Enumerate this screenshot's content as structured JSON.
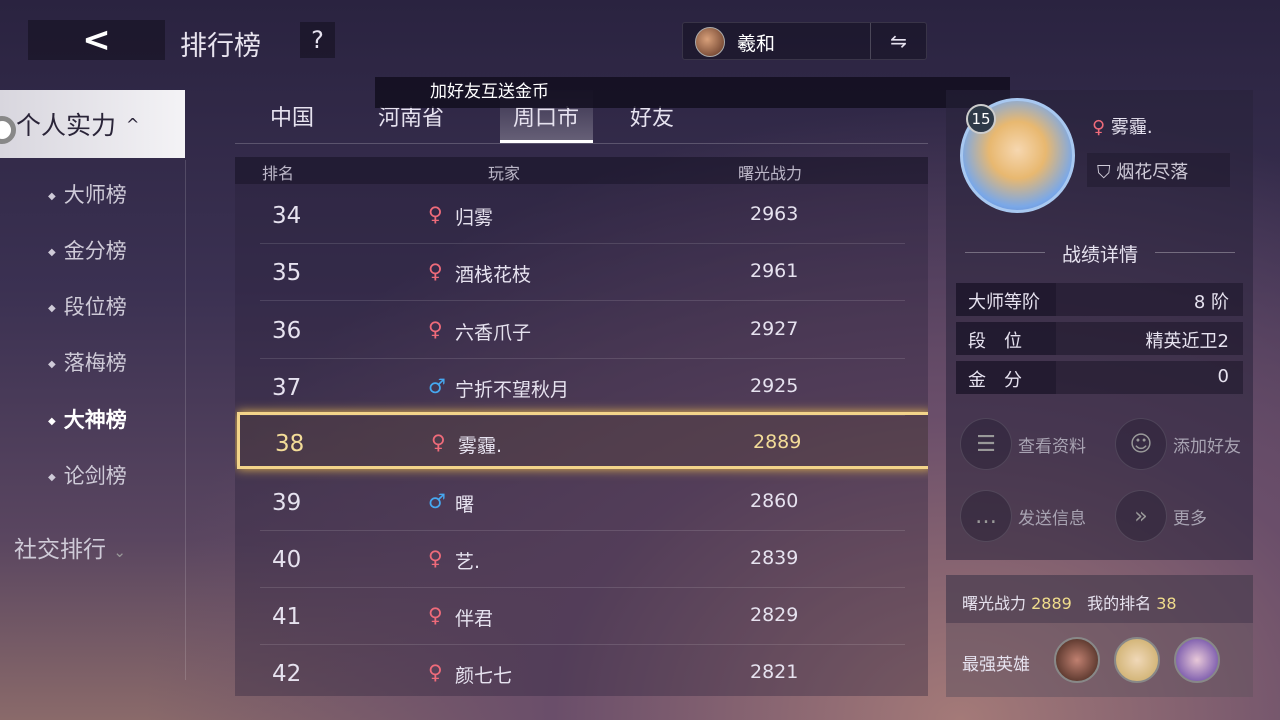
{
  "header": {
    "back_icon": "chevron-left",
    "title": "排行榜",
    "help": "?",
    "account_name": "羲和",
    "swap_icon": "swap-arrows"
  },
  "sidebar": {
    "group": "个人实力",
    "items": [
      {
        "label": "大师榜"
      },
      {
        "label": "金分榜"
      },
      {
        "label": "段位榜"
      },
      {
        "label": "落梅榜"
      },
      {
        "label": "大神榜",
        "active": true
      },
      {
        "label": "论剑榜"
      }
    ],
    "social": "社交排行"
  },
  "tabs": [
    {
      "label": "中国"
    },
    {
      "label": "河南省"
    },
    {
      "label": "周口市",
      "selected": true
    },
    {
      "label": "好友"
    }
  ],
  "banner": "加好友互送金币",
  "table": {
    "headers": [
      "排名",
      "玩家",
      "曙光战力"
    ],
    "rows": [
      {
        "rank": "34",
        "gender": "♀",
        "name": "归雾",
        "power": "2963"
      },
      {
        "rank": "35",
        "gender": "♀",
        "name": "酒栈花枝",
        "power": "2961"
      },
      {
        "rank": "36",
        "gender": "♀",
        "name": "六香爪子",
        "power": "2927"
      },
      {
        "rank": "37",
        "gender": "♂",
        "name": "宁折不望秋月",
        "power": "2925"
      },
      {
        "rank": "38",
        "gender": "♀",
        "name": "雾霾.",
        "power": "2889",
        "highlight": true
      },
      {
        "rank": "39",
        "gender": "♂",
        "name": "曙",
        "power": "2860"
      },
      {
        "rank": "40",
        "gender": "♀",
        "name": "艺.",
        "power": "2839"
      },
      {
        "rank": "41",
        "gender": "♀",
        "name": "伴君",
        "power": "2829"
      },
      {
        "rank": "42",
        "gender": "♀",
        "name": "颜七七",
        "power": "2821"
      }
    ]
  },
  "profile": {
    "level": "15",
    "gender": "♀",
    "name": "雾霾.",
    "title": "烟花尽落",
    "section": "战绩详情",
    "stats": [
      {
        "k": "大师等阶",
        "v": "8 阶"
      },
      {
        "k": "段　位",
        "v": "精英近卫2"
      },
      {
        "k": "金　分",
        "v": "0"
      }
    ],
    "actions": [
      {
        "label": "查看资料",
        "icon": "document-search"
      },
      {
        "label": "添加好友",
        "icon": "add-friend"
      },
      {
        "label": "发送信息",
        "icon": "chat-bubble"
      },
      {
        "label": "更多",
        "icon": "double-chevron-right"
      }
    ]
  },
  "summary": {
    "power_label": "曙光战力",
    "power": "2889",
    "rank_label": "我的排名",
    "rank": "38",
    "heroes_label": "最强英雄"
  },
  "colors": {
    "highlight": "#f3d48a",
    "female": "#ef6b7a",
    "male": "#46a8f0",
    "gold_text": "#f0dc8c"
  }
}
